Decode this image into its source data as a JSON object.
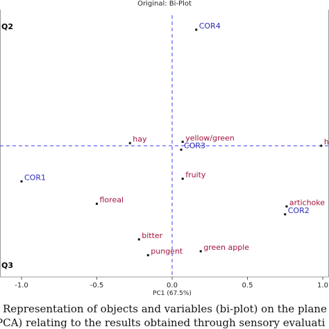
{
  "header": {
    "title": "Original: Bi-Plot"
  },
  "quadrants": {
    "q2": "Q2",
    "q3": "Q3"
  },
  "caption": {
    "line1": "Representation of objects and variables (bi-plot) on the plane of the t",
    "line2": "PCA) relating to the results obtained through sensory evaluations of"
  },
  "colors": {
    "objects": "#2a2ab8",
    "variables": "#a0143c",
    "axis": "#3a3af0",
    "frame": "#9a9a9a"
  },
  "chart_data": {
    "type": "scatter",
    "title": "Original: Bi-Plot",
    "xlabel": "PC1 (67.5%)",
    "ylabel": "",
    "xlim": [
      -1.05,
      1.0
    ],
    "ylim": [
      -1.0,
      1.0
    ],
    "xticks": [
      -1.0,
      -0.5,
      0.0,
      0.5,
      1.0
    ],
    "xtick_labels": [
      "-1.0",
      "-0.5",
      "0.0",
      "0.5",
      "1.0"
    ],
    "origin_lines": {
      "x": 0.0,
      "y": 0.0
    },
    "grid": false,
    "objects": [
      {
        "label": "COR4",
        "x": 0.16,
        "y": 0.88
      },
      {
        "label": "COR3",
        "x": 0.06,
        "y": -0.03
      },
      {
        "label": "COR1",
        "x": -1.0,
        "y": -0.27
      },
      {
        "label": "COR2",
        "x": 0.75,
        "y": -0.52
      }
    ],
    "variables": [
      {
        "label": "hay",
        "x": -0.28,
        "y": 0.02
      },
      {
        "label": "yellow/green",
        "x": 0.07,
        "y": 0.03
      },
      {
        "label": "h",
        "x": 0.99,
        "y": 0.0
      },
      {
        "label": "fruity",
        "x": 0.07,
        "y": -0.25
      },
      {
        "label": "floreal",
        "x": -0.5,
        "y": -0.44
      },
      {
        "label": "artichoke",
        "x": 0.76,
        "y": -0.46
      },
      {
        "label": "bitter",
        "x": -0.22,
        "y": -0.71
      },
      {
        "label": "pungent",
        "x": -0.16,
        "y": -0.83
      },
      {
        "label": "green apple",
        "x": 0.19,
        "y": -0.8
      }
    ]
  }
}
